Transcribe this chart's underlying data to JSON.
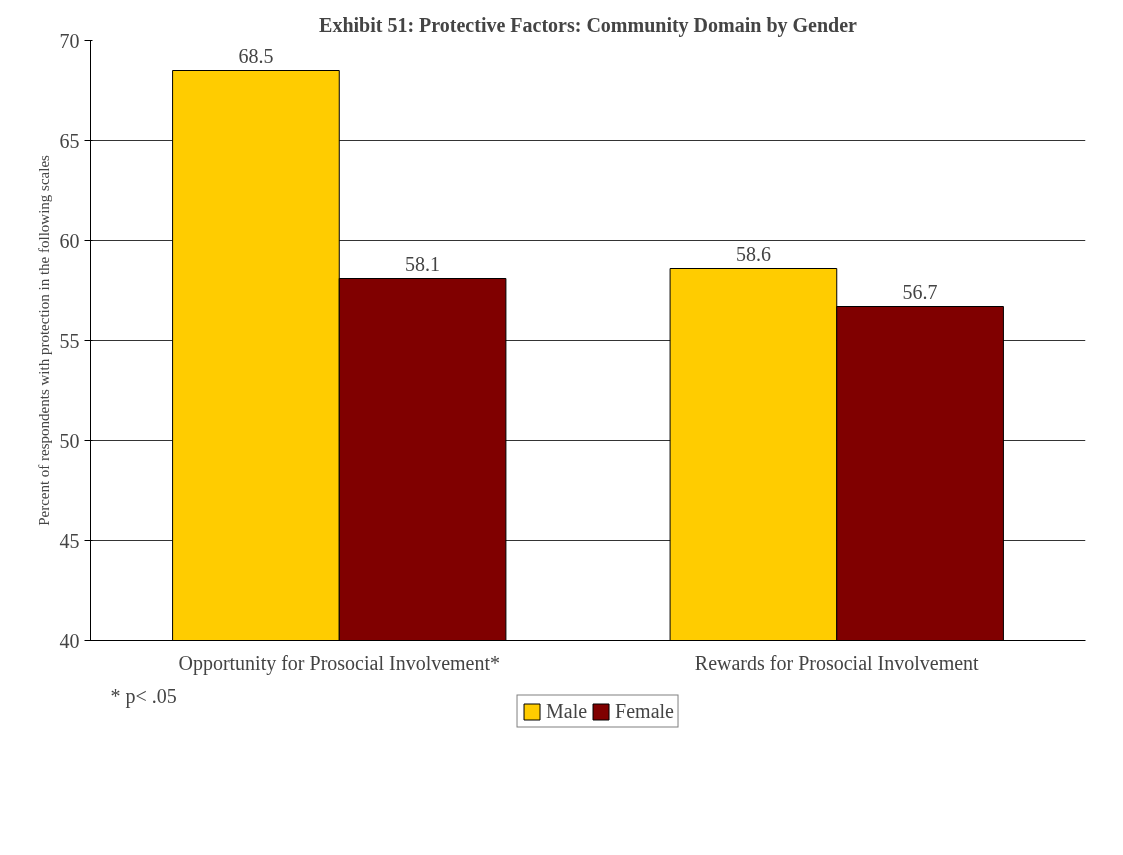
{
  "chart_data": {
    "type": "bar",
    "title": "Exhibit 51: Protective Factors: Community Domain by Gender",
    "ylabel": "Percent of respondents with protection in the following scales",
    "categories": [
      "Opportunity for Prosocial Involvement*",
      "Rewards for Prosocial Involvement"
    ],
    "series": [
      {
        "name": "Male",
        "color": "#ffcc00",
        "values": [
          68.5,
          58.6
        ]
      },
      {
        "name": "Female",
        "color": "#800000",
        "values": [
          58.1,
          56.7
        ]
      }
    ],
    "ylim": [
      40,
      70
    ],
    "yticks": [
      40,
      45,
      50,
      55,
      60,
      65,
      70
    ],
    "grid": "y",
    "legend": "bottom",
    "data_labels": true,
    "annotations": [
      "* p< .05"
    ]
  }
}
